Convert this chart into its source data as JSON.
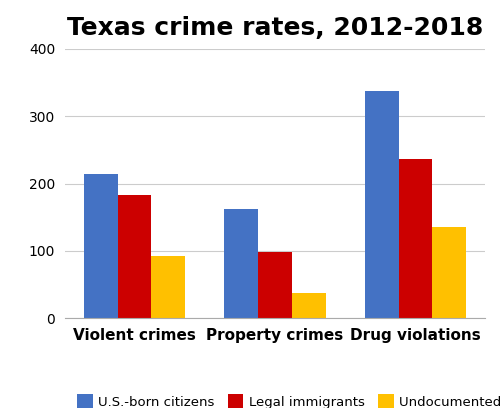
{
  "title": "Texas crime rates, 2012-2018",
  "categories": [
    "Violent crimes",
    "Property crimes",
    "Drug violations"
  ],
  "series": {
    "U.S.-born citizens": [
      215,
      163,
      337
    ],
    "Legal immigrants": [
      183,
      98,
      236
    ],
    "Undocumented immigrants": [
      93,
      37,
      135
    ]
  },
  "colors": {
    "U.S.-born citizens": "#4472C4",
    "Legal immigrants": "#CC0000",
    "Undocumented immigrants": "#FFC000"
  },
  "ylim": [
    0,
    400
  ],
  "yticks": [
    0,
    100,
    200,
    300,
    400
  ],
  "title_fontsize": 18,
  "legend_fontsize": 9.5,
  "xtick_fontsize": 11,
  "ytick_fontsize": 10,
  "background_color": "#ffffff",
  "grid_color": "#cccccc"
}
